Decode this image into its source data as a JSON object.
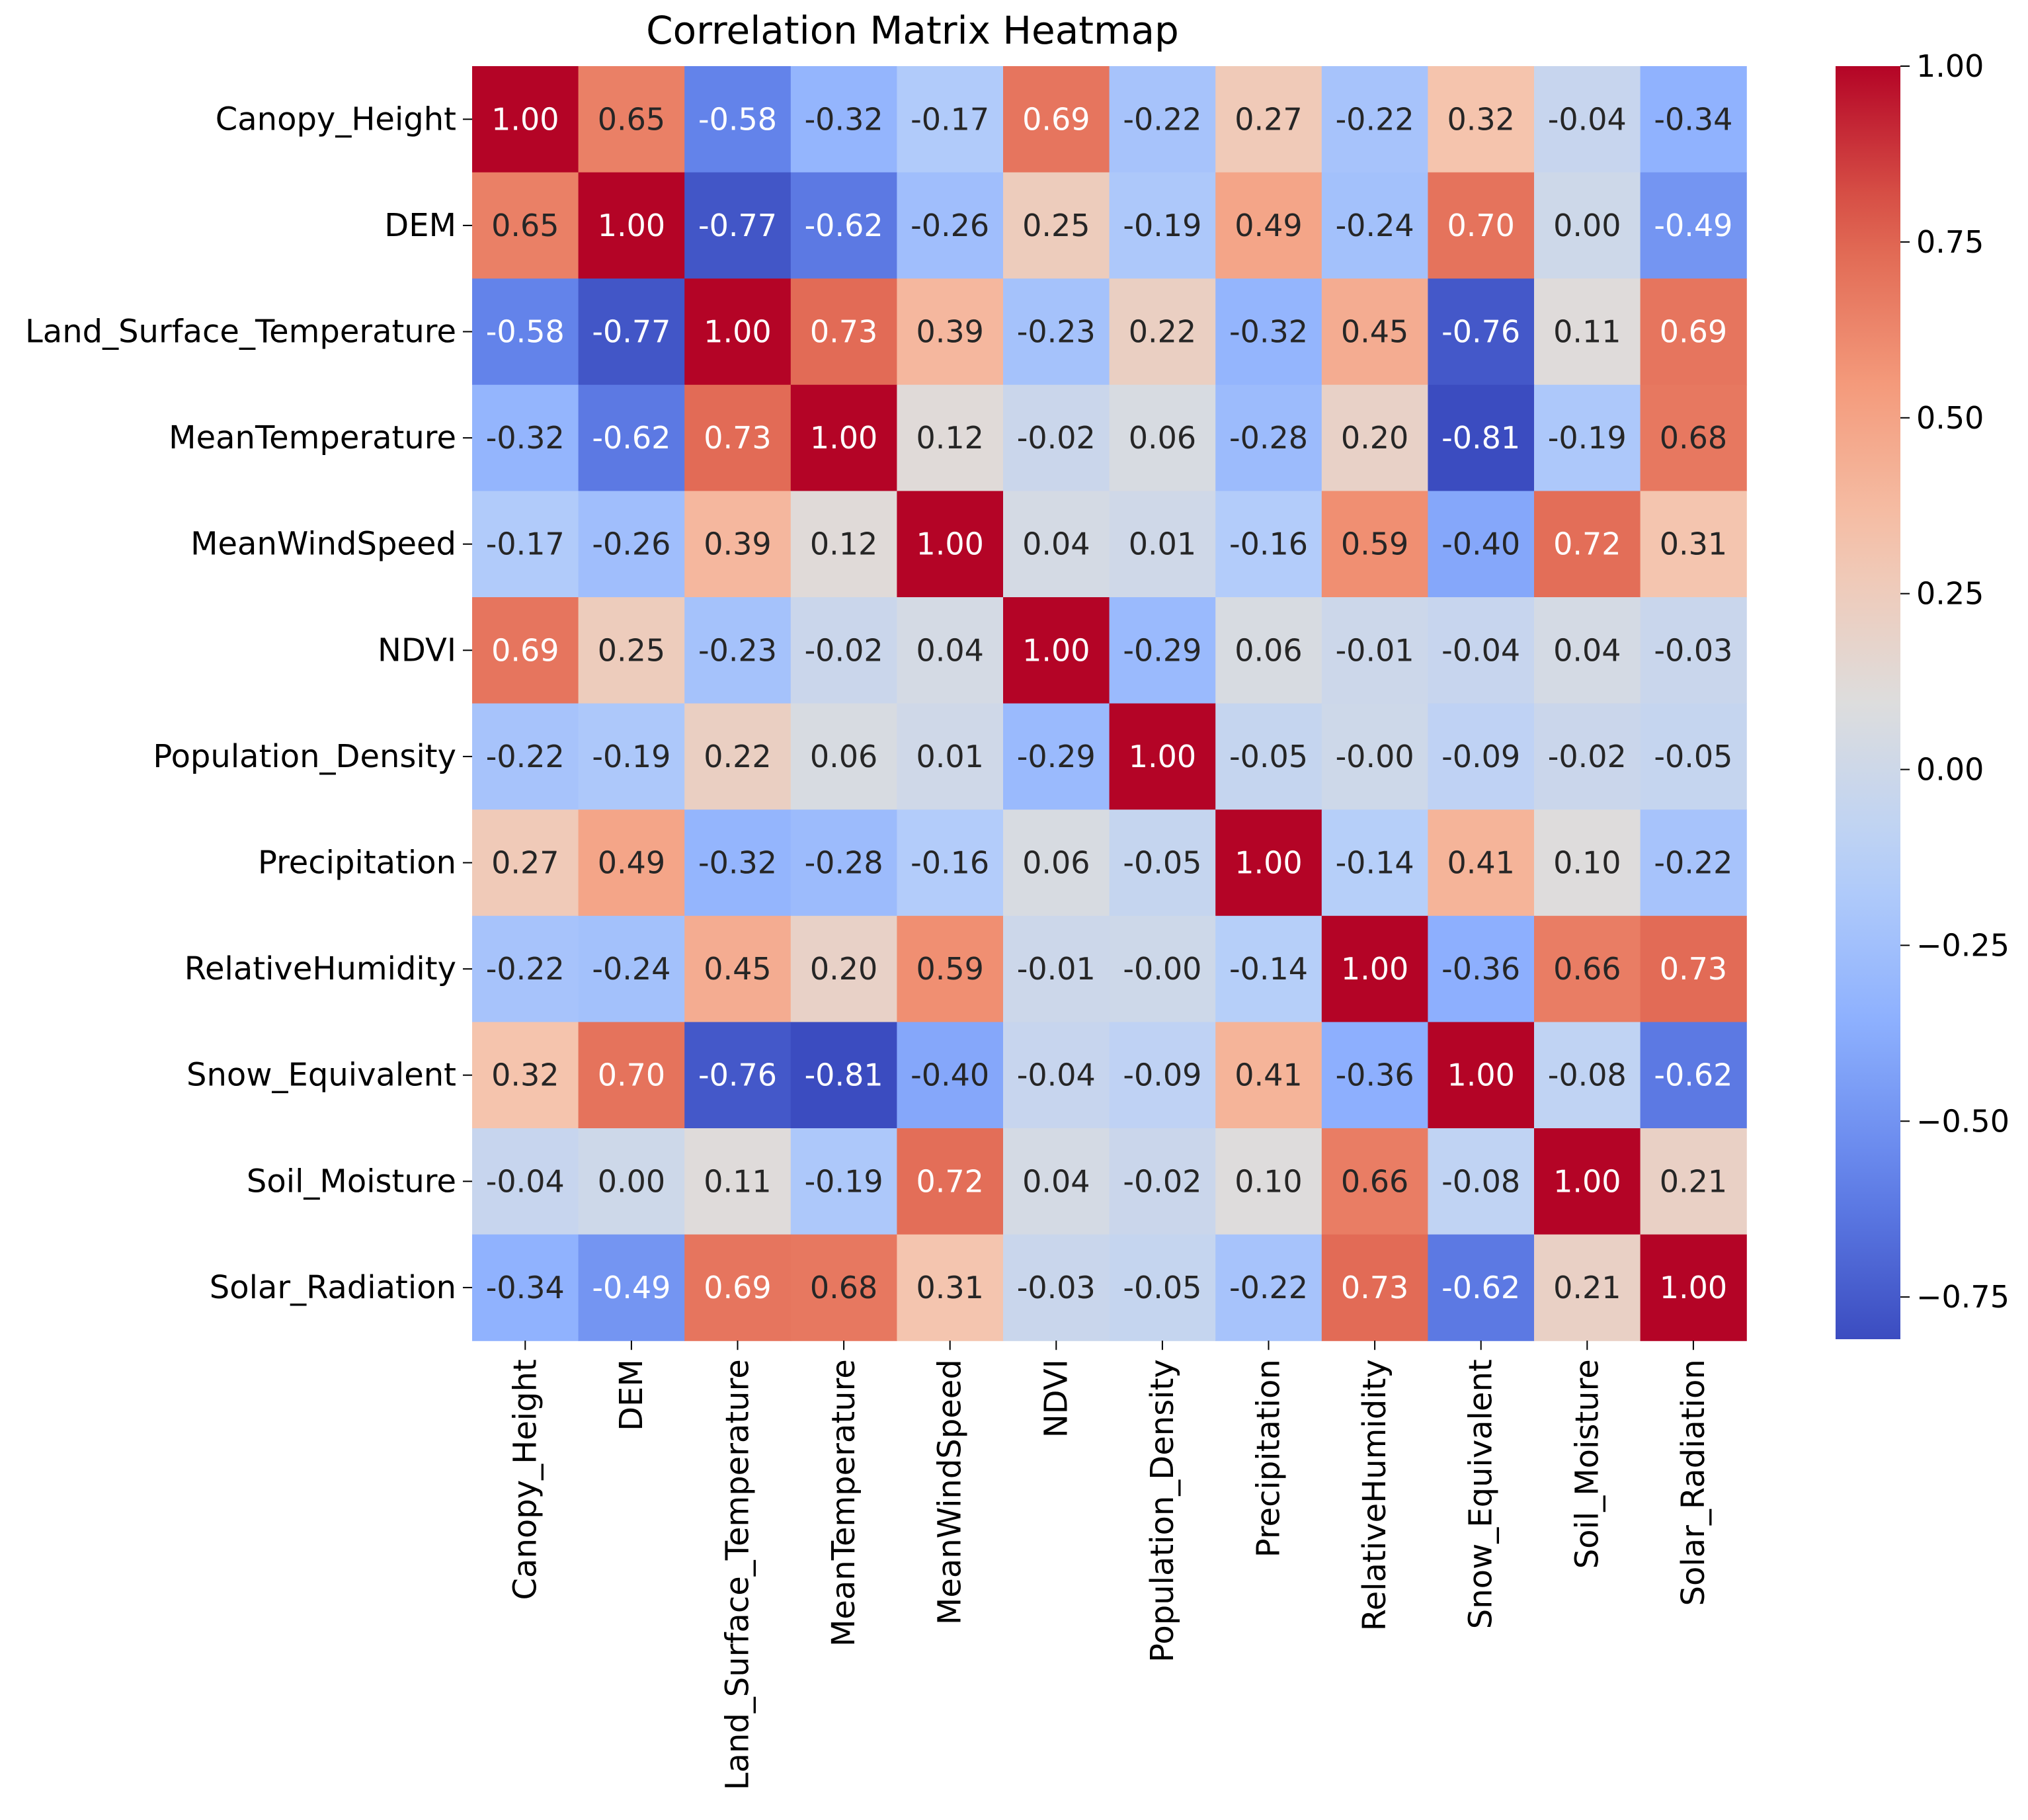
{
  "chart_data": {
    "type": "heatmap",
    "title": "Correlation Matrix Heatmap",
    "xlabel": "",
    "ylabel": "",
    "labels": [
      "Canopy_Height",
      "DEM",
      "Land_Surface_Temperature",
      "MeanTemperature",
      "MeanWindSpeed",
      "NDVI",
      "Population_Density",
      "Precipitation",
      "RelativeHumidity",
      "Snow_Equivalent",
      "Soil_Moisture",
      "Solar_Radiation"
    ],
    "matrix": [
      [
        1.0,
        0.65,
        -0.58,
        -0.32,
        -0.17,
        0.69,
        -0.22,
        0.27,
        -0.22,
        0.32,
        -0.04,
        -0.34
      ],
      [
        0.65,
        1.0,
        -0.77,
        -0.62,
        -0.26,
        0.25,
        -0.19,
        0.49,
        -0.24,
        0.7,
        0.0,
        -0.49
      ],
      [
        -0.58,
        -0.77,
        1.0,
        0.73,
        0.39,
        -0.23,
        0.22,
        -0.32,
        0.45,
        -0.76,
        0.11,
        0.69
      ],
      [
        -0.32,
        -0.62,
        0.73,
        1.0,
        0.12,
        -0.02,
        0.06,
        -0.28,
        0.2,
        -0.81,
        -0.19,
        0.68
      ],
      [
        -0.17,
        -0.26,
        0.39,
        0.12,
        1.0,
        0.04,
        0.01,
        -0.16,
        0.59,
        -0.4,
        0.72,
        0.31
      ],
      [
        0.69,
        0.25,
        -0.23,
        -0.02,
        0.04,
        1.0,
        -0.29,
        0.06,
        -0.01,
        -0.04,
        0.04,
        -0.03
      ],
      [
        -0.22,
        -0.19,
        0.22,
        0.06,
        0.01,
        -0.29,
        1.0,
        -0.05,
        -0.0,
        -0.09,
        -0.02,
        -0.05
      ],
      [
        0.27,
        0.49,
        -0.32,
        -0.28,
        -0.16,
        0.06,
        -0.05,
        1.0,
        -0.14,
        0.41,
        0.1,
        -0.22
      ],
      [
        -0.22,
        -0.24,
        0.45,
        0.2,
        0.59,
        -0.01,
        -0.0,
        -0.14,
        1.0,
        -0.36,
        0.66,
        0.73
      ],
      [
        0.32,
        0.7,
        -0.76,
        -0.81,
        -0.4,
        -0.04,
        -0.09,
        0.41,
        -0.36,
        1.0,
        -0.08,
        -0.62
      ],
      [
        -0.04,
        0.0,
        0.11,
        -0.19,
        0.72,
        0.04,
        -0.02,
        0.1,
        0.66,
        -0.08,
        1.0,
        0.21
      ],
      [
        -0.34,
        -0.49,
        0.69,
        0.68,
        0.31,
        -0.03,
        -0.05,
        -0.22,
        0.73,
        -0.62,
        0.21,
        1.0
      ]
    ],
    "value_format": "2 decimals",
    "colormap": "coolwarm",
    "vmin": -0.81,
    "vmax": 1.0,
    "colorbar": {
      "ticks": [
        1.0,
        0.75,
        0.5,
        0.25,
        0.0,
        -0.25,
        -0.5,
        -0.75
      ],
      "tick_labels": [
        "1.00",
        "0.75",
        "0.50",
        "0.25",
        "0.00",
        "−0.25",
        "−0.50",
        "−0.75"
      ],
      "placement": "right"
    }
  }
}
